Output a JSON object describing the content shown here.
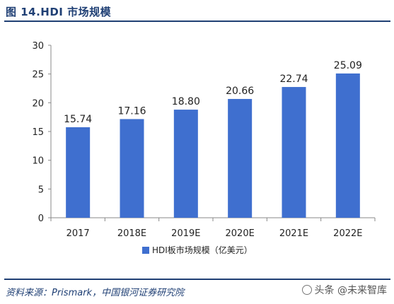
{
  "figure": {
    "title": "图 14.HDI 市场规模",
    "source": "资料来源：Prismark，中国银河证券研究院",
    "watermark": "头条 @未来智库"
  },
  "chart_data": {
    "type": "bar",
    "title": "",
    "xlabel": "",
    "ylabel": "",
    "categories": [
      "2017",
      "2018E",
      "2019E",
      "2020E",
      "2021E",
      "2022E"
    ],
    "series": [
      {
        "name": "HDI板市场规模（亿美元）",
        "values": [
          15.74,
          17.16,
          18.8,
          20.66,
          22.74,
          25.09
        ]
      }
    ],
    "data_labels": [
      "15.74",
      "17.16",
      "18.80",
      "20.66",
      "22.74",
      "25.09"
    ],
    "yticks": [
      0,
      5,
      10,
      15,
      20,
      25,
      30
    ],
    "ylim": [
      0,
      30
    ],
    "grid": false,
    "legend": "bottom-center",
    "colors": {
      "bar": "#3f6fcf",
      "axis": "#888888",
      "accent": "#1f3f74"
    }
  }
}
